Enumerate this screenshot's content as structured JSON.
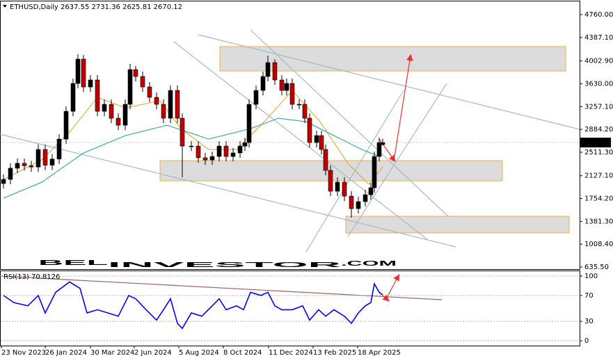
{
  "chart_data": [
    {
      "type": "candlestick",
      "symbol": "ETHUSD,Daily",
      "xlim": [
        0,
        833
      ],
      "ylim": [
        590,
        4976
      ],
      "yticks": [
        {
          "value": 4760,
          "label": "4760.00"
        },
        {
          "value": 4387.1,
          "label": "4387.10"
        },
        {
          "value": 4002.9,
          "label": "4002.90"
        },
        {
          "value": 3630,
          "label": "3630.00"
        },
        {
          "value": 3257.1,
          "label": "3257.10"
        },
        {
          "value": 2884.2,
          "label": "2884.20"
        },
        {
          "value": 2511.3,
          "label": "2511.30"
        },
        {
          "value": 2127.1,
          "label": "2127.10"
        },
        {
          "value": 1754.2,
          "label": "1754.20"
        },
        {
          "value": 1381.3,
          "label": "1381.30"
        },
        {
          "value": 1008.4,
          "label": "1008.40"
        },
        {
          "value": 635.5,
          "label": "635.50"
        }
      ],
      "up_color": "#000000",
      "down_color": "#c00000",
      "x": [
        5,
        15,
        25,
        35,
        45,
        55,
        65,
        75,
        85,
        95,
        105,
        112,
        120,
        130,
        140,
        150,
        160,
        170,
        180,
        187,
        195,
        205,
        215,
        225,
        235,
        245,
        255,
        262,
        275,
        285,
        295,
        305,
        315,
        325,
        335,
        345,
        352,
        358,
        368,
        378,
        385,
        395,
        405,
        412,
        420,
        430,
        438,
        445,
        455,
        462,
        468,
        475,
        485,
        495,
        505,
        515,
        525,
        533,
        538,
        545,
        550
      ],
      "open": [
        2000,
        2067,
        2250,
        2330,
        2290,
        2270,
        2556,
        2300,
        2400,
        2726,
        3180,
        3635,
        4033,
        3578,
        3692,
        3180,
        3294,
        3067,
        2953,
        3294,
        3862,
        3749,
        3578,
        3408,
        3294,
        3067,
        3521,
        3067,
        2612,
        2612,
        2420,
        2385,
        2442,
        2612,
        2442,
        2500,
        2612,
        2669,
        3294,
        3521,
        3749,
        3976,
        3692,
        3521,
        3635,
        3294,
        3294,
        3067,
        2669,
        2783,
        2556,
        2215,
        1874,
        2022,
        1794,
        1590,
        1704,
        1817,
        1931,
        2442,
        2637.55
      ],
      "high": [
        2147,
        2330,
        2410,
        2410,
        2370,
        2636,
        2636,
        2480,
        2806,
        3260,
        3715,
        4112,
        4100,
        3772,
        3772,
        3374,
        3374,
        3147,
        3374,
        3953,
        3920,
        3829,
        3658,
        3488,
        3374,
        3601,
        3601,
        3147,
        2692,
        2692,
        2500,
        2522,
        2692,
        2692,
        2580,
        2692,
        2749,
        3374,
        3601,
        3829,
        4090,
        4030,
        3772,
        3715,
        3715,
        3374,
        3374,
        3147,
        2863,
        2863,
        2636,
        2295,
        2102,
        2102,
        1874,
        1784,
        1897,
        2011,
        2522,
        2749,
        2731.36
      ],
      "low": [
        1920,
        1987,
        2170,
        2210,
        2190,
        2190,
        2220,
        2220,
        2320,
        2646,
        3100,
        3555,
        3498,
        3498,
        3100,
        3100,
        2987,
        2873,
        2873,
        3214,
        3669,
        3498,
        3328,
        3214,
        2987,
        2987,
        2987,
        2101,
        2532,
        2340,
        2305,
        2305,
        2362,
        2362,
        2362,
        2420,
        2532,
        2589,
        3214,
        3441,
        3669,
        3612,
        3441,
        3441,
        3214,
        3214,
        2987,
        2589,
        2589,
        2476,
        2135,
        1794,
        1794,
        1714,
        1442,
        1510,
        1624,
        1737,
        1851,
        2362,
        2625.81
      ],
      "close": [
        2067,
        2250,
        2330,
        2290,
        2270,
        2556,
        2300,
        2400,
        2726,
        3180,
        3635,
        4033,
        3578,
        3692,
        3180,
        3294,
        3067,
        2953,
        3294,
        3862,
        3749,
        3578,
        3408,
        3294,
        3067,
        3521,
        3067,
        2612,
        2612,
        2420,
        2385,
        2442,
        2612,
        2442,
        2500,
        2612,
        2669,
        3294,
        3521,
        3749,
        3976,
        3692,
        3521,
        3635,
        3294,
        3294,
        3067,
        2669,
        2783,
        2556,
        2215,
        1874,
        2022,
        1794,
        1590,
        1704,
        1817,
        1931,
        2442,
        2670,
        2670.12
      ],
      "series": [
        {
          "color": "#e0a020",
          "x": [
            5,
            60,
            100,
            140,
            180,
            230,
            260,
            300,
            340,
            380,
            420,
            460,
            500,
            530,
            550
          ],
          "values": [
            2067,
            2385,
            2840,
            3408,
            3237,
            3351,
            2897,
            2556,
            2556,
            3010,
            3521,
            3010,
            2329,
            1988,
            2272
          ]
        },
        {
          "color": "#20a0a0",
          "x": [
            5,
            60,
            120,
            180,
            240,
            300,
            360,
            400,
            440,
            480,
            520,
            545
          ],
          "values": [
            1760,
            2022,
            2499,
            2783,
            2953,
            2726,
            2897,
            3067,
            3010,
            2783,
            2556,
            2442
          ]
        }
      ],
      "watermark": [
        "BEL",
        "INVESTOR",
        ".COM"
      ]
    },
    {
      "type": "line",
      "label": "RSI(13)",
      "color": "#0000ff",
      "xlim": [
        0,
        833
      ],
      "ylim": [
        -7.5,
        108.6
      ],
      "yticks": [
        100,
        70,
        30,
        0
      ],
      "xticks": [
        {
          "value": 2,
          "label": "23 Nov 2023"
        },
        {
          "value": 65,
          "label": "26 Jan 2024"
        },
        {
          "value": 130,
          "label": "30 Mar 2024"
        },
        {
          "value": 193,
          "label": "2 Jun 2024"
        },
        {
          "value": 257,
          "label": "5 Aug 2024"
        },
        {
          "value": 321,
          "label": "8 Oct 2024"
        },
        {
          "value": 386,
          "label": "11 Dec 2024"
        },
        {
          "value": 450,
          "label": "13 Feb 2025"
        },
        {
          "value": 514,
          "label": "18 Apr 2025"
        }
      ],
      "x": [
        5,
        20,
        40,
        55,
        65,
        80,
        100,
        115,
        125,
        140,
        155,
        170,
        185,
        195,
        210,
        225,
        235,
        245,
        255,
        262,
        275,
        290,
        305,
        315,
        325,
        340,
        350,
        360,
        375,
        385,
        395,
        405,
        420,
        435,
        445,
        458,
        468,
        480,
        495,
        505,
        515,
        525,
        533,
        538,
        545,
        550
      ],
      "values": [
        70,
        59,
        54,
        70,
        43,
        75,
        91,
        81,
        43,
        48,
        43,
        38,
        70,
        65,
        48,
        32,
        48,
        65,
        27,
        19,
        43,
        38,
        54,
        65,
        48,
        54,
        48,
        75,
        70,
        75,
        54,
        48,
        48,
        54,
        32,
        48,
        38,
        48,
        38,
        27,
        43,
        54,
        59,
        88,
        75,
        70.8126
      ]
    }
  ]
}
